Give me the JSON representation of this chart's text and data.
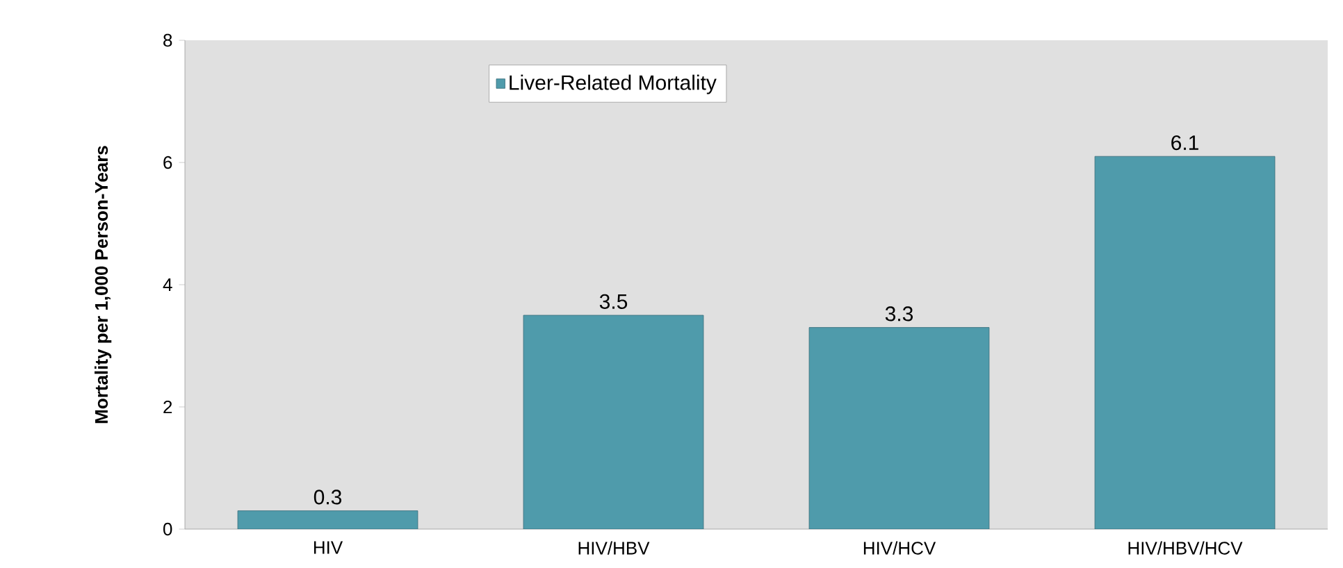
{
  "chart_data": {
    "type": "bar",
    "ylabel": "Mortality per 1,000 Person-Years",
    "categories": [
      "HIV",
      "HIV/HBV",
      "HIV/HCV",
      "HIV/HBV/HCV"
    ],
    "series": [
      {
        "name": "Liver-Related Mortality",
        "color": "#4f9bab",
        "values": [
          0.3,
          3.5,
          3.3,
          6.1
        ]
      }
    ],
    "ylim": [
      0,
      8
    ],
    "yticks": [
      0,
      2,
      4,
      6,
      8
    ],
    "data_labels": true,
    "legend": "top"
  }
}
